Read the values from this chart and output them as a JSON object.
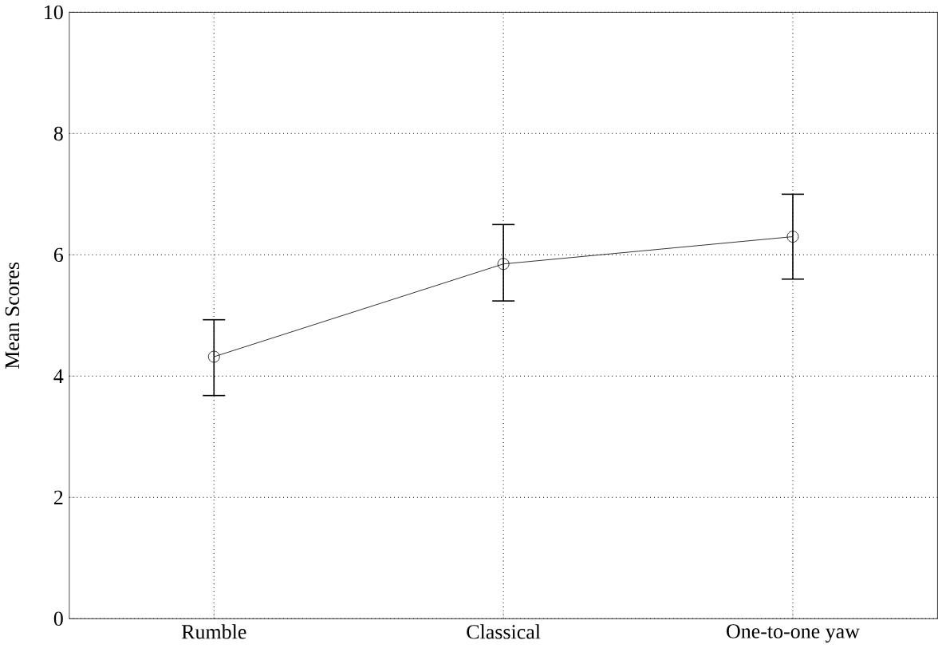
{
  "chart_data": {
    "type": "line",
    "ylabel": "Mean Scores",
    "categories": [
      "Rumble",
      "Classical",
      "One-to-one yaw"
    ],
    "values": [
      4.32,
      5.85,
      6.3
    ],
    "errors": [
      [
        3.68,
        4.93
      ],
      [
        5.24,
        6.5
      ],
      [
        5.6,
        7.0
      ]
    ],
    "color": "#000000",
    "marker": "circle",
    "line_style": "solid",
    "ylim": [
      0,
      10
    ],
    "yticks": [
      0,
      2,
      4,
      6,
      8,
      10
    ],
    "grid": true
  }
}
